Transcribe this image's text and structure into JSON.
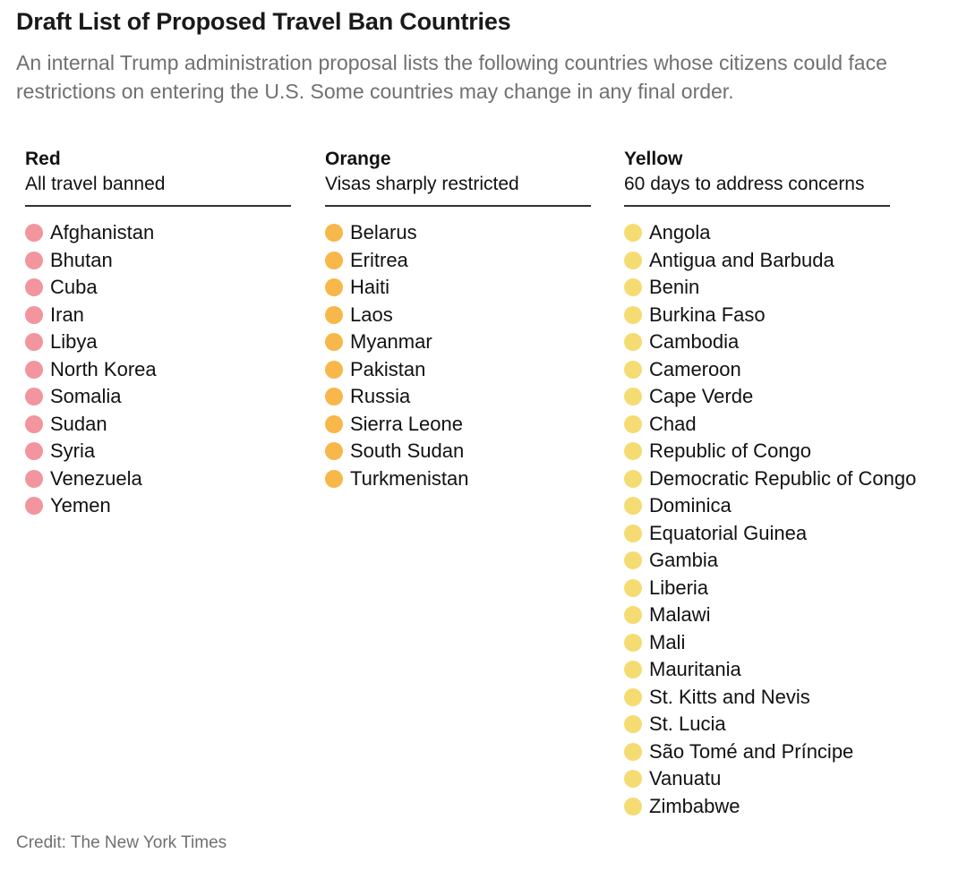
{
  "title": "Draft List of Proposed Travel Ban Countries",
  "subtitle": "An internal Trump administration proposal lists the following countries whose citizens could face restrictions on entering the U.S. Some countries may change in any final order.",
  "credit": "Credit: The New York Times",
  "chart_data": {
    "type": "table",
    "columns": [
      {
        "key": "red",
        "heading": "Red",
        "subheading": "All travel banned",
        "dot_color": "#f2959e",
        "countries": [
          "Afghanistan",
          "Bhutan",
          "Cuba",
          "Iran",
          "Libya",
          "North Korea",
          "Somalia",
          "Sudan",
          "Syria",
          "Venezuela",
          "Yemen"
        ]
      },
      {
        "key": "orange",
        "heading": "Orange",
        "subheading": "Visas sharply restricted",
        "dot_color": "#f7b74a",
        "countries": [
          "Belarus",
          "Eritrea",
          "Haiti",
          "Laos",
          "Myanmar",
          "Pakistan",
          "Russia",
          "Sierra Leone",
          "South Sudan",
          "Turkmenistan"
        ]
      },
      {
        "key": "yellow",
        "heading": "Yellow",
        "subheading": "60 days to address concerns",
        "dot_color": "#f5dc72",
        "countries": [
          "Angola",
          "Antigua and Barbuda",
          "Benin",
          "Burkina Faso",
          "Cambodia",
          "Cameroon",
          "Cape Verde",
          "Chad",
          "Republic of Congo",
          "Democratic Republic of Congo",
          "Dominica",
          "Equatorial Guinea",
          "Gambia",
          "Liberia",
          "Malawi",
          "Mali",
          "Mauritania",
          "St. Kitts and Nevis",
          "St. Lucia",
          "São Tomé and Príncipe",
          "Vanuatu",
          "Zimbabwe"
        ]
      }
    ]
  }
}
